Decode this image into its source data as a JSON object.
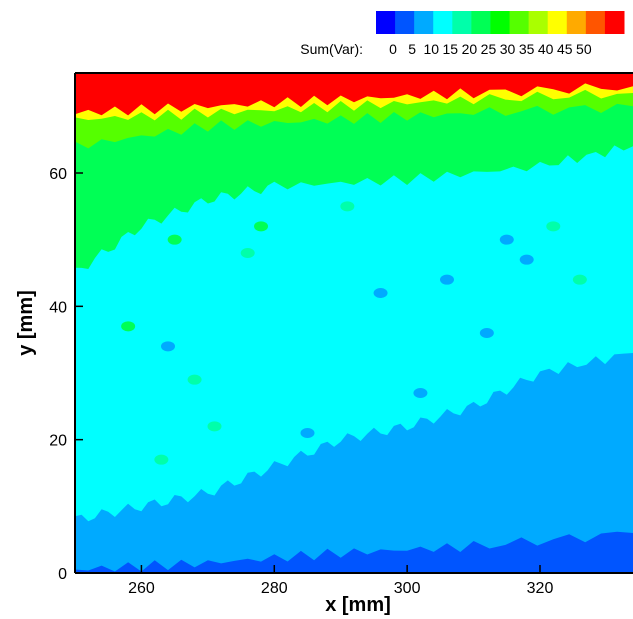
{
  "chart_data": {
    "type": "heatmap",
    "title": "",
    "xlabel": "x [mm]",
    "ylabel": "y [mm]",
    "xlim": [
      250,
      334
    ],
    "ylim": [
      0,
      75
    ],
    "x_ticks": [
      "260",
      "280",
      "300",
      "320"
    ],
    "y_ticks": [
      "0",
      "20",
      "40",
      "60"
    ],
    "x_tick_values": [
      260,
      280,
      300,
      320
    ],
    "y_tick_values": [
      0,
      20,
      40,
      60
    ],
    "legend": {
      "title": "Sum(Var):",
      "position": "top-right",
      "levels": [
        "0",
        "5",
        "10",
        "15",
        "20",
        "25",
        "30",
        "35",
        "40",
        "45",
        "50"
      ],
      "level_values": [
        0,
        5,
        10,
        15,
        20,
        25,
        30,
        35,
        40,
        45,
        50
      ],
      "colors": [
        "#0000ff",
        "#0055ff",
        "#00aaff",
        "#00ffff",
        "#00ffaa",
        "#00ff55",
        "#00ff00",
        "#55ff00",
        "#aaff00",
        "#ffff00",
        "#ffaa00",
        "#ff5500",
        "#ff0000"
      ]
    },
    "contour_bands": [
      {
        "level_range": [
          0,
          5
        ],
        "color": "#0055ff",
        "upper_y": [
          [
            250,
            0.5
          ],
          [
            270,
            1.5
          ],
          [
            290,
            3
          ],
          [
            310,
            4
          ],
          [
            334,
            6
          ]
        ]
      },
      {
        "level_range": [
          5,
          10
        ],
        "color": "#00aaff",
        "upper_y": [
          [
            250,
            8
          ],
          [
            260,
            10
          ],
          [
            270,
            12
          ],
          [
            280,
            16
          ],
          [
            290,
            20
          ],
          [
            300,
            22
          ],
          [
            310,
            25
          ],
          [
            320,
            30
          ],
          [
            334,
            33
          ]
        ]
      },
      {
        "level_range": [
          10,
          15
        ],
        "color": "#00ffff",
        "upper_y": [
          [
            250,
            45
          ],
          [
            260,
            52
          ],
          [
            270,
            56
          ],
          [
            280,
            58
          ],
          [
            300,
            59
          ],
          [
            320,
            61
          ],
          [
            334,
            64
          ]
        ]
      },
      {
        "level_range": [
          15,
          25
        ],
        "color": "#00ff55",
        "upper_y": [
          [
            250,
            64
          ],
          [
            270,
            67
          ],
          [
            290,
            68
          ],
          [
            310,
            69
          ],
          [
            334,
            70
          ]
        ]
      },
      {
        "level_range": [
          25,
          35
        ],
        "color": "#55ff00",
        "upper_y": [
          [
            250,
            68
          ],
          [
            270,
            69
          ],
          [
            290,
            70
          ],
          [
            310,
            71
          ],
          [
            334,
            72
          ]
        ]
      },
      {
        "level_range": [
          35,
          45
        ],
        "color": "#ffff00",
        "upper_y": [
          [
            250,
            69
          ],
          [
            270,
            70
          ],
          [
            290,
            71
          ],
          [
            310,
            72
          ],
          [
            334,
            73
          ]
        ]
      },
      {
        "level_range": [
          45,
          55
        ],
        "color": "#ff0000",
        "upper_y": [
          [
            250,
            75
          ],
          [
            334,
            75
          ]
        ]
      }
    ],
    "scattered_spots": [
      {
        "x": 258,
        "y": 37,
        "color": "#00ff55"
      },
      {
        "x": 263,
        "y": 17,
        "color": "#00ffaa"
      },
      {
        "x": 268,
        "y": 29,
        "color": "#00ffaa"
      },
      {
        "x": 276,
        "y": 48,
        "color": "#00ffaa"
      },
      {
        "x": 265,
        "y": 50,
        "color": "#00ff55"
      },
      {
        "x": 291,
        "y": 55,
        "color": "#00ffaa"
      },
      {
        "x": 278,
        "y": 52,
        "color": "#00ff55"
      },
      {
        "x": 306,
        "y": 44,
        "color": "#00aaff"
      },
      {
        "x": 296,
        "y": 42,
        "color": "#00aaff"
      },
      {
        "x": 318,
        "y": 47,
        "color": "#00aaff"
      },
      {
        "x": 322,
        "y": 52,
        "color": "#00ffaa"
      },
      {
        "x": 264,
        "y": 34,
        "color": "#00aaff"
      },
      {
        "x": 271,
        "y": 22,
        "color": "#00ffaa"
      },
      {
        "x": 302,
        "y": 27,
        "color": "#00aaff"
      },
      {
        "x": 312,
        "y": 36,
        "color": "#00aaff"
      },
      {
        "x": 285,
        "y": 21,
        "color": "#00aaff"
      },
      {
        "x": 315,
        "y": 50,
        "color": "#00aaff"
      },
      {
        "x": 326,
        "y": 44,
        "color": "#00ffaa"
      }
    ],
    "grid": false
  }
}
